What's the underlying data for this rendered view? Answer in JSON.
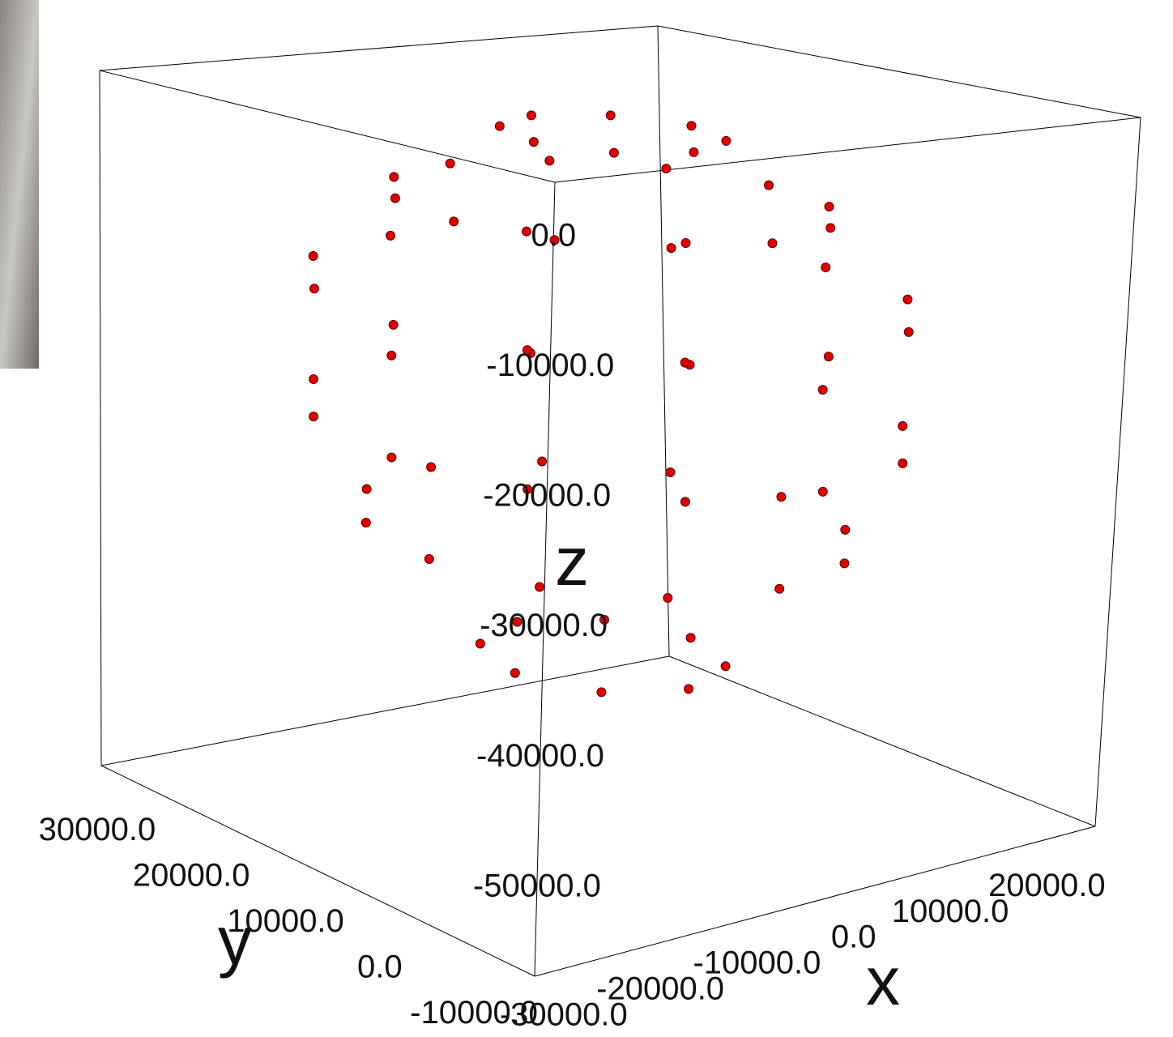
{
  "chart_data": {
    "type": "scatter3d",
    "x_label": "x",
    "y_label": "y",
    "z_label": "z",
    "color": "#e00000",
    "xlim": [
      -33000,
      25000
    ],
    "ylim": [
      -13000,
      33000
    ],
    "zlim": [
      -57000,
      4000
    ],
    "xticks": [
      {
        "value": -30000,
        "label": "-30000.0"
      },
      {
        "value": -20000,
        "label": "-20000.0"
      },
      {
        "value": -10000,
        "label": "-10000.0"
      },
      {
        "value": 0,
        "label": "0.0"
      },
      {
        "value": 10000,
        "label": "10000.0"
      },
      {
        "value": 20000,
        "label": "20000.0"
      }
    ],
    "yticks": [
      {
        "value": -10000,
        "label": "-10000.0"
      },
      {
        "value": 0,
        "label": "0.0"
      },
      {
        "value": 10000,
        "label": "10000.0"
      },
      {
        "value": 20000,
        "label": "20000.0"
      },
      {
        "value": 30000,
        "label": "30000.0"
      }
    ],
    "zticks": [
      {
        "value": -50000,
        "label": "-50000.0"
      },
      {
        "value": -40000,
        "label": "-40000.0"
      },
      {
        "value": -30000,
        "label": "-30000.0"
      },
      {
        "value": -20000,
        "label": "-20000.0"
      },
      {
        "value": -10000,
        "label": "-10000.0"
      },
      {
        "value": 0,
        "label": "0.0"
      }
    ],
    "x": [
      4000,
      1660,
      -4000,
      -9660,
      -12000,
      -9660,
      -4000,
      1660,
      12000,
      9860,
      4000,
      -4000,
      -12000,
      -17860,
      -20000,
      -17860,
      -12000,
      -4000,
      4000,
      9860,
      18000,
      15050,
      7000,
      -4000,
      -15000,
      -23050,
      -26000,
      -23050,
      -15000,
      -4000,
      7000,
      15050,
      18000,
      15050,
      7000,
      -4000,
      -15000,
      -23050,
      -26000,
      -23050,
      -15000,
      -4000,
      7000,
      15050,
      14000,
      11590,
      5000,
      -4000,
      -13000,
      -19590,
      -22000,
      -19590,
      -13000,
      -4000,
      5000,
      11590,
      5000,
      2360,
      -4000,
      -10360,
      -13000,
      -10360,
      -4000,
      2360
    ],
    "y": [
      10000,
      15660,
      18000,
      15660,
      10000,
      4340,
      2000,
      4340,
      10000,
      18000,
      23860,
      26000,
      23860,
      18000,
      10000,
      2000,
      -3860,
      -6000,
      -3860,
      2000,
      10000,
      21000,
      29050,
      32000,
      29050,
      21000,
      10000,
      -1000,
      -9050,
      -12000,
      -9050,
      -1000,
      10000,
      21000,
      29050,
      32000,
      29050,
      21000,
      10000,
      -1000,
      -9050,
      -12000,
      -9050,
      -1000,
      10000,
      19000,
      25590,
      28000,
      25590,
      19000,
      10000,
      1000,
      -5590,
      -8000,
      -5590,
      1000,
      10000,
      16360,
      19000,
      16360,
      10000,
      3640,
      1000,
      3640
    ],
    "z": [
      1000,
      1000,
      1000,
      1000,
      1000,
      1000,
      1000,
      1000,
      -5000,
      -5000,
      -5000,
      -5000,
      -5000,
      -5000,
      -5000,
      -5000,
      -5000,
      -5000,
      -5000,
      -5000,
      -13000,
      -13000,
      -13000,
      -13000,
      -13000,
      -13000,
      -13000,
      -13000,
      -13000,
      -13000,
      -13000,
      -13000,
      -24000,
      -24000,
      -24000,
      -24000,
      -24000,
      -24000,
      -24000,
      -24000,
      -24000,
      -24000,
      -24000,
      -24000,
      -33000,
      -33000,
      -33000,
      -33000,
      -33000,
      -33000,
      -33000,
      -33000,
      -33000,
      -33000,
      -33000,
      -33000,
      -44000,
      -44000,
      -44000,
      -44000,
      -44000,
      -44000,
      -44000,
      -44000
    ]
  }
}
